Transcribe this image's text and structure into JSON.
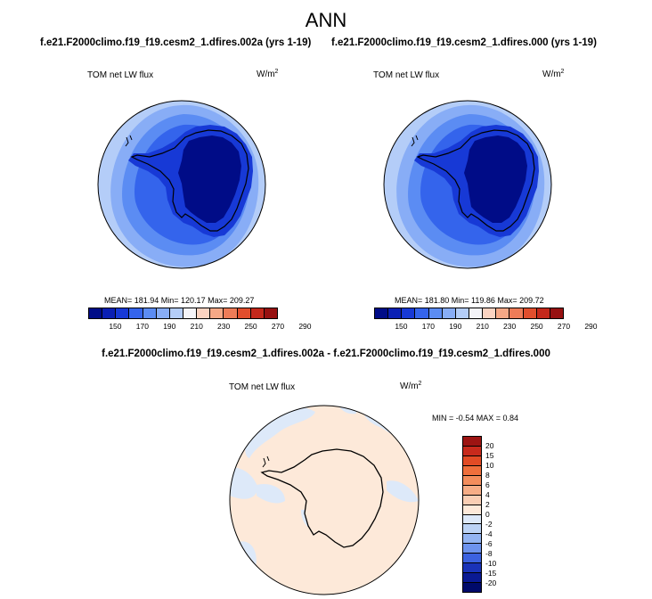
{
  "title": "ANN",
  "panels": [
    {
      "case_title": "f.e21.F2000climo.f19_f19.cesm2_1.dfires.002a (yrs 1-19)",
      "variable": "TOM net LW flux",
      "units": "W/m",
      "units_sup": "2",
      "stats": "MEAN= 181.94  Min= 120.17  Max= 209.27",
      "colorbar_ticks": [
        "150",
        "170",
        "190",
        "210",
        "230",
        "250",
        "270",
        "290"
      ]
    },
    {
      "case_title": "f.e21.F2000climo.f19_f19.cesm2_1.dfires.000 (yrs 1-19)",
      "variable": "TOM net LW flux",
      "units": "W/m",
      "units_sup": "2",
      "stats": "MEAN= 181.80  Min= 119.86  Max= 209.72",
      "colorbar_ticks": [
        "150",
        "170",
        "190",
        "210",
        "230",
        "250",
        "270",
        "290"
      ]
    }
  ],
  "diff": {
    "title": "f.e21.F2000climo.f19_f19.cesm2_1.dfires.002a - f.e21.F2000climo.f19_f19.cesm2_1.dfires.000",
    "variable": "TOM net LW flux",
    "units": "W/m",
    "units_sup": "2",
    "stats": "MIN = -0.54 MAX =   0.84",
    "colorbar_ticks": [
      "20",
      "15",
      "10",
      "8",
      "6",
      "4",
      "2",
      "0",
      "-2",
      "-4",
      "-6",
      "-8",
      "-10",
      "-15",
      "-20"
    ]
  },
  "colors": {
    "abs_colorbar": [
      "#000c87",
      "#0a1fb4",
      "#1739d6",
      "#3464ec",
      "#5b8cf3",
      "#88adf6",
      "#b4cdf8",
      "#f4f4f8",
      "#fbd3c1",
      "#f6a886",
      "#ee7c58",
      "#e14e2d",
      "#c4281b",
      "#971111"
    ],
    "diff_colorbar": [
      "#9d1412",
      "#c82a1c",
      "#e24b25",
      "#ef6f3c",
      "#f38d5c",
      "#f6ad86",
      "#f9ceb4",
      "#fde9d9",
      "#dde9f9",
      "#bcd3f5",
      "#93b4f2",
      "#6d93ee",
      "#3c62e0",
      "#1a33b8",
      "#0a1a93",
      "#000a6a"
    ],
    "outer_ring": "#b4cdf8",
    "mid_ring": "#88adf6",
    "inner_ring": "#5b8cf3",
    "coast_ring": "#3464ec",
    "ice_edge": "#1739d6",
    "interior": "#000c87",
    "diff_background": "#fde9d9",
    "diff_negative": "#dde9f9"
  }
}
